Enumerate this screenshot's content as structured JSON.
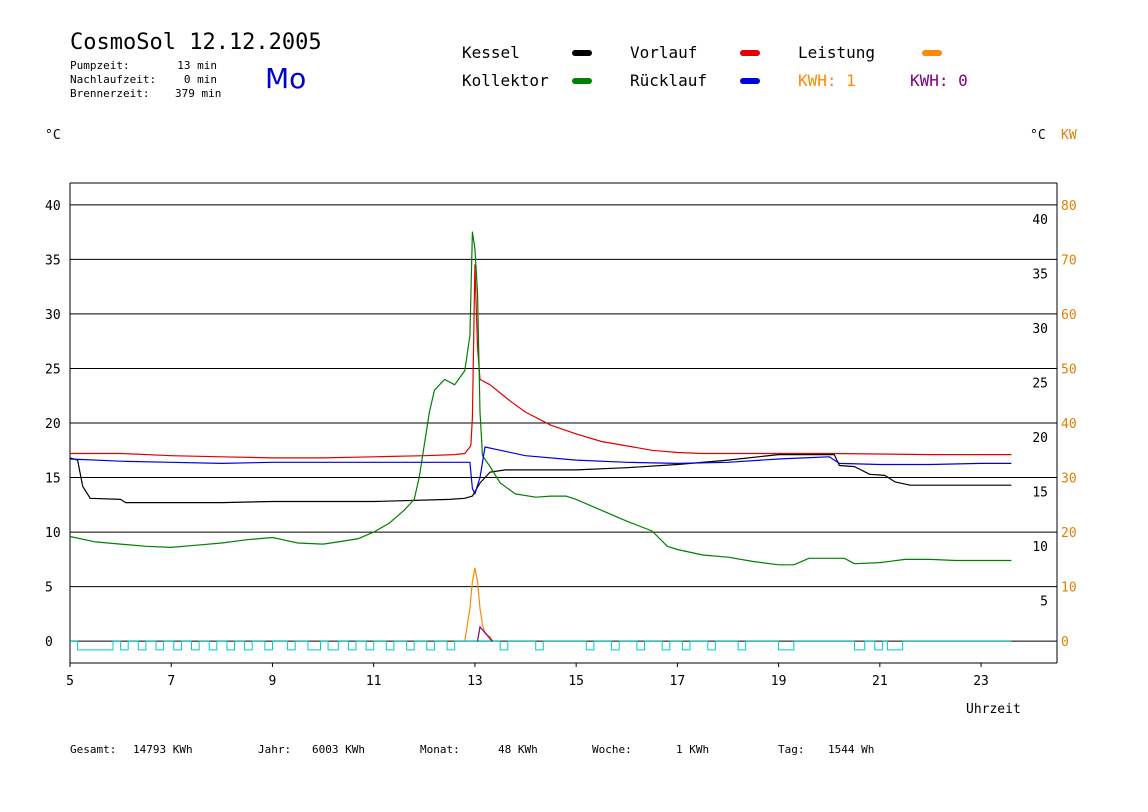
{
  "header": {
    "title": "CosmoSol 12.12.2005",
    "weekday": "Mo",
    "info": [
      {
        "label": "Pumpzeit:",
        "value": "13 min"
      },
      {
        "label": "Nachlaufzeit:",
        "value": "0 min"
      },
      {
        "label": "Brennerzeit:",
        "value": "379 min"
      }
    ]
  },
  "legend": {
    "items": [
      {
        "label": "Kessel",
        "color": "#000000"
      },
      {
        "label": "Vorlauf",
        "color": "#e00000"
      },
      {
        "label": "Leistung",
        "color": "#ff8800"
      },
      {
        "label": "Kollektor",
        "color": "#008000"
      },
      {
        "label": "Rücklauf",
        "color": "#0000dd"
      }
    ],
    "kwh": [
      {
        "text": "KWH: 1",
        "color": "#ff8800"
      },
      {
        "text": "KWH: 0",
        "color": "#800080"
      }
    ]
  },
  "axes": {
    "left_unit": "°C",
    "right_unit_c": "°C",
    "right_unit_kw": "KW",
    "x_label": "Uhrzeit"
  },
  "footer": {
    "items": [
      {
        "label": "Gesamt:",
        "value": "14793 KWh"
      },
      {
        "label": "Jahr:",
        "value": "6003 KWh"
      },
      {
        "label": "Monat:",
        "value": "48 KWh"
      },
      {
        "label": "Woche:",
        "value": "1 KWh"
      },
      {
        "label": "Tag:",
        "value": "1544 Wh"
      }
    ]
  },
  "chart_data": {
    "type": "line",
    "title": "CosmoSol 12.12.2005",
    "xlabel": "Uhrzeit",
    "ylabel": "°C",
    "xlim": [
      5,
      24.5
    ],
    "ylim": [
      -2,
      42
    ],
    "x_ticks": [
      5,
      7,
      9,
      11,
      13,
      15,
      17,
      19,
      21,
      23
    ],
    "y_ticks_left": [
      0,
      5,
      10,
      15,
      20,
      25,
      30,
      35,
      40
    ],
    "y_ticks_right_c": [
      5,
      10,
      15,
      20,
      25,
      30,
      35,
      40
    ],
    "y_ticks_right_kw": [
      0,
      10,
      20,
      30,
      40,
      50,
      60,
      70,
      80
    ],
    "grid": true,
    "legend_position": "top",
    "series": [
      {
        "name": "Kessel",
        "color": "#000000",
        "points": [
          [
            5,
            16.8
          ],
          [
            5.15,
            16.6
          ],
          [
            5.25,
            14.2
          ],
          [
            5.4,
            13.1
          ],
          [
            6,
            13
          ],
          [
            6.1,
            12.7
          ],
          [
            8,
            12.7
          ],
          [
            9,
            12.8
          ],
          [
            11,
            12.8
          ],
          [
            12.5,
            13
          ],
          [
            12.8,
            13.1
          ],
          [
            12.95,
            13.3
          ],
          [
            13.1,
            14.5
          ],
          [
            13.3,
            15.5
          ],
          [
            13.6,
            15.7
          ],
          [
            15,
            15.7
          ],
          [
            16,
            15.9
          ],
          [
            17,
            16.2
          ],
          [
            18,
            16.6
          ],
          [
            19,
            17.1
          ],
          [
            20.1,
            17.1
          ],
          [
            20.2,
            16.1
          ],
          [
            20.5,
            16
          ],
          [
            20.8,
            15.3
          ],
          [
            21.1,
            15.2
          ],
          [
            21.3,
            14.6
          ],
          [
            21.6,
            14.3
          ],
          [
            23.6,
            14.3
          ]
        ]
      },
      {
        "name": "Vorlauf",
        "color": "#e00000",
        "points": [
          [
            5,
            17.2
          ],
          [
            6,
            17.2
          ],
          [
            7,
            17
          ],
          [
            8,
            16.9
          ],
          [
            9,
            16.8
          ],
          [
            10,
            16.8
          ],
          [
            11,
            16.9
          ],
          [
            12,
            17
          ],
          [
            12.6,
            17.1
          ],
          [
            12.8,
            17.2
          ],
          [
            12.9,
            17.8
          ],
          [
            12.92,
            18
          ],
          [
            12.95,
            20.5
          ],
          [
            13,
            34.5
          ],
          [
            13.05,
            27
          ],
          [
            13.1,
            24
          ],
          [
            13.3,
            23.5
          ],
          [
            13.7,
            22
          ],
          [
            14,
            21
          ],
          [
            14.5,
            19.8
          ],
          [
            15,
            19
          ],
          [
            15.5,
            18.3
          ],
          [
            16,
            17.9
          ],
          [
            16.5,
            17.5
          ],
          [
            17,
            17.3
          ],
          [
            17.5,
            17.2
          ],
          [
            18,
            17.2
          ],
          [
            20,
            17.2
          ],
          [
            22,
            17.1
          ],
          [
            23.6,
            17.1
          ]
        ]
      },
      {
        "name": "Kollektor",
        "color": "#008000",
        "points": [
          [
            5,
            9.6
          ],
          [
            5.5,
            9.1
          ],
          [
            6,
            8.9
          ],
          [
            6.5,
            8.7
          ],
          [
            7,
            8.6
          ],
          [
            7.5,
            8.8
          ],
          [
            8,
            9
          ],
          [
            8.5,
            9.3
          ],
          [
            9,
            9.5
          ],
          [
            9.2,
            9.3
          ],
          [
            9.5,
            9
          ],
          [
            10,
            8.9
          ],
          [
            10.3,
            9.1
          ],
          [
            10.7,
            9.4
          ],
          [
            11,
            10
          ],
          [
            11.3,
            10.8
          ],
          [
            11.6,
            12
          ],
          [
            11.8,
            13
          ],
          [
            11.9,
            15
          ],
          [
            12,
            18
          ],
          [
            12.1,
            21
          ],
          [
            12.2,
            23
          ],
          [
            12.4,
            24
          ],
          [
            12.6,
            23.5
          ],
          [
            12.8,
            24.8
          ],
          [
            12.9,
            28
          ],
          [
            12.95,
            37.5
          ],
          [
            13,
            36
          ],
          [
            13.05,
            32
          ],
          [
            13.1,
            21
          ],
          [
            13.15,
            17
          ],
          [
            13.3,
            16
          ],
          [
            13.5,
            14.5
          ],
          [
            13.8,
            13.5
          ],
          [
            14.2,
            13.2
          ],
          [
            14.5,
            13.3
          ],
          [
            14.8,
            13.3
          ],
          [
            15,
            13
          ],
          [
            15.5,
            12
          ],
          [
            16,
            11
          ],
          [
            16.5,
            10.1
          ],
          [
            16.8,
            8.7
          ],
          [
            17,
            8.4
          ],
          [
            17.5,
            7.9
          ],
          [
            18,
            7.7
          ],
          [
            18.5,
            7.3
          ],
          [
            19,
            7
          ],
          [
            19.3,
            7
          ],
          [
            19.6,
            7.6
          ],
          [
            20.3,
            7.6
          ],
          [
            20.5,
            7.1
          ],
          [
            21,
            7.2
          ],
          [
            21.5,
            7.5
          ],
          [
            22,
            7.5
          ],
          [
            22.5,
            7.4
          ],
          [
            23,
            7.4
          ],
          [
            23.6,
            7.4
          ]
        ]
      },
      {
        "name": "Rücklauf",
        "color": "#0000dd",
        "points": [
          [
            5,
            16.7
          ],
          [
            6,
            16.5
          ],
          [
            7,
            16.4
          ],
          [
            8,
            16.3
          ],
          [
            9,
            16.4
          ],
          [
            11,
            16.4
          ],
          [
            12,
            16.4
          ],
          [
            12.9,
            16.4
          ],
          [
            12.95,
            14
          ],
          [
            13,
            13.5
          ],
          [
            13.1,
            15
          ],
          [
            13.2,
            17.8
          ],
          [
            13.4,
            17.6
          ],
          [
            14,
            17
          ],
          [
            15,
            16.6
          ],
          [
            16,
            16.4
          ],
          [
            17,
            16.3
          ],
          [
            18,
            16.4
          ],
          [
            19,
            16.7
          ],
          [
            19.5,
            16.8
          ],
          [
            20,
            16.9
          ],
          [
            20.2,
            16.3
          ],
          [
            21,
            16.2
          ],
          [
            22,
            16.2
          ],
          [
            23,
            16.3
          ],
          [
            23.6,
            16.3
          ]
        ]
      },
      {
        "name": "Leistung",
        "color": "#ff8800",
        "points": [
          [
            12.8,
            0
          ],
          [
            12.85,
            1.5
          ],
          [
            12.9,
            3
          ],
          [
            12.95,
            5.5
          ],
          [
            13,
            6.7
          ],
          [
            13.05,
            5.5
          ],
          [
            13.1,
            3
          ],
          [
            13.15,
            1.5
          ],
          [
            13.2,
            0.7
          ],
          [
            13.3,
            0.4
          ],
          [
            13.35,
            0
          ]
        ]
      }
    ]
  }
}
